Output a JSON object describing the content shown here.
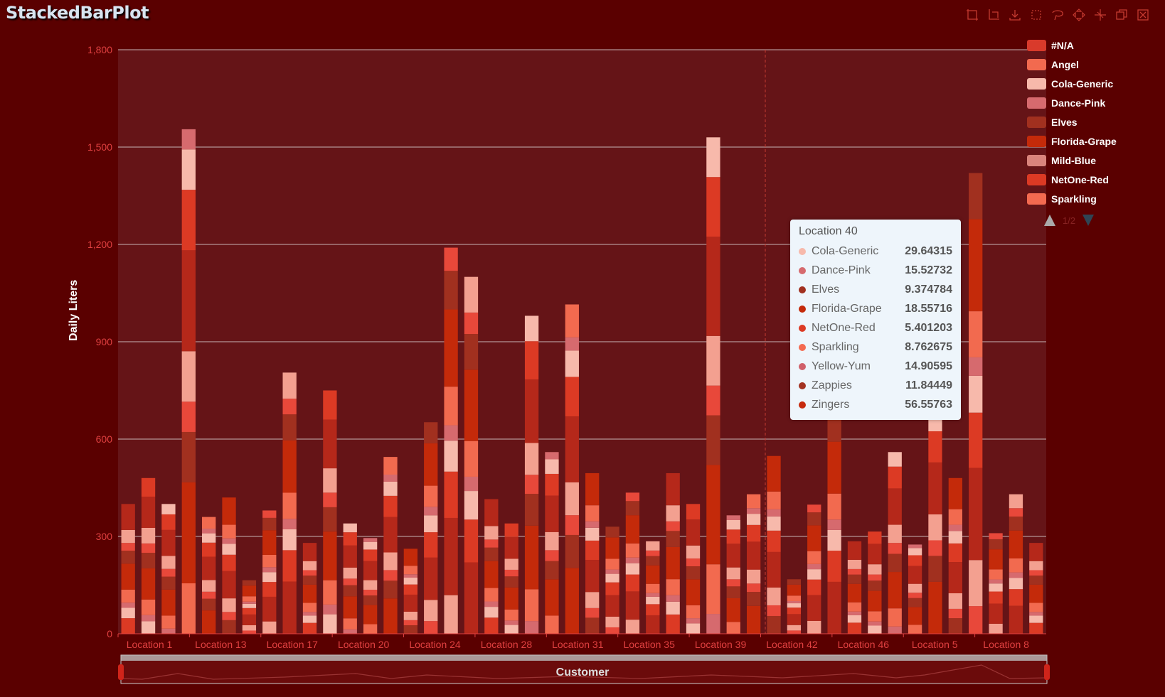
{
  "title": "StackedBarPlot",
  "toolbox": [
    "zoom-icon",
    "zoom-reset-icon",
    "download-icon",
    "rect-select-icon",
    "lasso-select-icon",
    "keep-select-icon",
    "clear-select-icon",
    "restore-icon",
    "close-icon"
  ],
  "legend": {
    "items": [
      {
        "name": "#N/A",
        "color": "#d93a2b"
      },
      {
        "name": "Angel",
        "color": "#f26a4f"
      },
      {
        "name": "Cola-Generic",
        "color": "#f7b9ab"
      },
      {
        "name": "Dance-Pink",
        "color": "#d66a6e"
      },
      {
        "name": "Elves",
        "color": "#a1301f"
      },
      {
        "name": "Florida-Grape",
        "color": "#c42a0a"
      },
      {
        "name": "Mild-Blue",
        "color": "#d9847c"
      },
      {
        "name": "NetOne-Red",
        "color": "#dc3a24"
      },
      {
        "name": "Sparkling",
        "color": "#f46a50"
      }
    ],
    "pager": "1/2"
  },
  "tooltip": {
    "title": "Location 40",
    "rows": [
      {
        "name": "Cola-Generic",
        "value": "29.64315",
        "color": "#f7b9ab"
      },
      {
        "name": "Dance-Pink",
        "value": "15.52732",
        "color": "#d66a6e"
      },
      {
        "name": "Elves",
        "value": "9.374784",
        "color": "#a1301f"
      },
      {
        "name": "Florida-Grape",
        "value": "18.55716",
        "color": "#c42a0a"
      },
      {
        "name": "NetOne-Red",
        "value": "5.401203",
        "color": "#dc3a24"
      },
      {
        "name": "Sparkling",
        "value": "8.762675",
        "color": "#f46a50"
      },
      {
        "name": "Yellow-Yum",
        "value": "14.90595",
        "color": "#d0606a"
      },
      {
        "name": "Zappies",
        "value": "11.84449",
        "color": "#a33322"
      },
      {
        "name": "Zingers",
        "value": "56.55763",
        "color": "#c62a0e"
      }
    ]
  },
  "dataZoom": {
    "label": "Customer"
  },
  "chart_data": {
    "type": "bar",
    "ylabel": "Daily Liters",
    "xlabel": "Customer",
    "ylim": [
      0,
      1800
    ],
    "yticks": [
      0,
      300,
      600,
      900,
      1200,
      1500,
      1800
    ],
    "grid": true,
    "stacked": true,
    "legend_position": "right",
    "xtick_labels": [
      "Location 1",
      "Location 13",
      "Location 17",
      "Location 20",
      "Location 24",
      "Location 28",
      "Location 31",
      "Location 35",
      "Location 39",
      "Location 42",
      "Location 46",
      "Location 5",
      "Location 8"
    ],
    "bar_totals": [
      400,
      480,
      400,
      1555,
      360,
      420,
      165,
      380,
      805,
      280,
      750,
      340,
      295,
      545,
      262,
      652,
      1190,
      1100,
      415,
      340,
      980,
      560,
      1015,
      495,
      330,
      435,
      285,
      495,
      400,
      1530,
      365,
      430,
      548,
      168,
      398,
      800,
      285,
      315,
      560,
      275,
      800,
      480,
      1420,
      310,
      430,
      280
    ],
    "segment_fractions": [
      0.12,
      0.08,
      0.04,
      0.1,
      0.2,
      0.1,
      0.06,
      0.1,
      0.2
    ]
  }
}
